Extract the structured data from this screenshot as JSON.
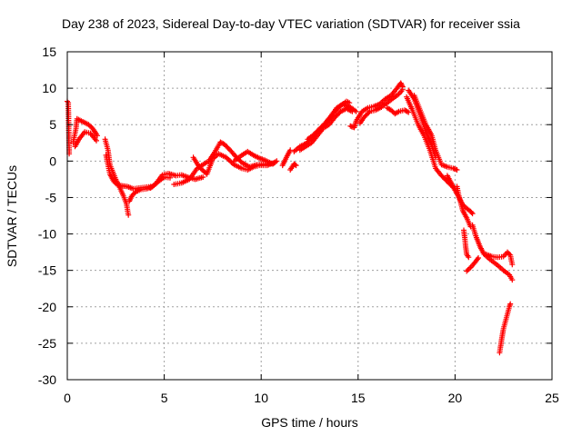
{
  "chart_data": {
    "type": "scatter",
    "title": "Day 238 of 2023, Sidereal Day-to-day VTEC variation (SDTVAR) for receiver ssia",
    "xlabel": "GPS time / hours",
    "ylabel": "SDTVAR / TECUs",
    "xlim": [
      0,
      25
    ],
    "ylim": [
      -30,
      15
    ],
    "xticks": [
      0,
      5,
      10,
      15,
      20,
      25
    ],
    "yticks": [
      -30,
      -25,
      -20,
      -15,
      -10,
      -5,
      0,
      5,
      10,
      15
    ],
    "grid": true,
    "marker": "+",
    "color": "#ff0000",
    "series": [
      {
        "name": "SDTVAR",
        "segments": [
          [
            [
              0.0,
              8.2
            ],
            [
              0.05,
              8.0
            ],
            [
              0.1,
              1.0
            ]
          ],
          [
            [
              0.3,
              2.5
            ],
            [
              0.45,
              4.5
            ],
            [
              0.5,
              5.8
            ],
            [
              0.8,
              5.4
            ],
            [
              1.1,
              5.0
            ],
            [
              1.3,
              4.5
            ],
            [
              1.55,
              3.5
            ]
          ],
          [
            [
              0.4,
              2.0
            ],
            [
              0.6,
              3.0
            ],
            [
              0.9,
              4.0
            ],
            [
              1.2,
              3.8
            ],
            [
              1.5,
              2.8
            ]
          ],
          [
            [
              1.95,
              3.0
            ],
            [
              2.1,
              1.5
            ],
            [
              2.2,
              -0.5
            ],
            [
              2.35,
              -1.5
            ],
            [
              2.5,
              -2.5
            ],
            [
              2.7,
              -3.6
            ],
            [
              2.9,
              -4.8
            ],
            [
              3.05,
              -5.8
            ],
            [
              3.15,
              -7.4
            ]
          ],
          [
            [
              2.0,
              0.8
            ],
            [
              2.2,
              -1.8
            ],
            [
              2.4,
              -2.8
            ],
            [
              2.6,
              -3.3
            ],
            [
              2.85,
              -3.4
            ],
            [
              3.1,
              -3.5
            ],
            [
              3.4,
              -3.8
            ],
            [
              3.7,
              -3.7
            ],
            [
              4.0,
              -3.6
            ],
            [
              4.3,
              -3.5
            ]
          ],
          [
            [
              3.2,
              -5.5
            ],
            [
              3.35,
              -4.7
            ],
            [
              3.55,
              -4.2
            ],
            [
              3.8,
              -3.9
            ],
            [
              4.1,
              -3.8
            ],
            [
              4.4,
              -3.5
            ],
            [
              4.7,
              -2.8
            ],
            [
              5.0,
              -2.2
            ],
            [
              5.3,
              -2.3
            ]
          ],
          [
            [
              4.3,
              -3.7
            ],
            [
              4.6,
              -3.0
            ],
            [
              4.9,
              -1.9
            ],
            [
              5.2,
              -1.7
            ],
            [
              5.6,
              -2.0
            ],
            [
              5.9,
              -1.9
            ],
            [
              6.2,
              -2.2
            ],
            [
              6.6,
              -2.5
            ],
            [
              7.0,
              -2.2
            ]
          ],
          [
            [
              5.5,
              -3.2
            ],
            [
              5.9,
              -3.0
            ],
            [
              6.3,
              -2.5
            ],
            [
              6.7,
              -1.0
            ],
            [
              7.0,
              -0.5
            ],
            [
              7.3,
              0.0
            ],
            [
              7.6,
              1.2
            ],
            [
              7.9,
              2.6
            ],
            [
              8.1,
              2.3
            ],
            [
              8.4,
              1.5
            ],
            [
              8.7,
              0.6
            ],
            [
              9.0,
              -0.2
            ],
            [
              9.4,
              -0.8
            ],
            [
              9.8,
              -0.5
            ],
            [
              10.2,
              -0.4
            ],
            [
              10.6,
              -0.3
            ]
          ],
          [
            [
              6.5,
              0.5
            ],
            [
              6.8,
              -0.8
            ],
            [
              7.2,
              -1.8
            ],
            [
              7.5,
              0.3
            ],
            [
              7.8,
              1.0
            ],
            [
              8.2,
              0.5
            ],
            [
              8.6,
              -0.5
            ],
            [
              9.0,
              -1.0
            ],
            [
              9.3,
              -1.2
            ],
            [
              9.6,
              -0.8
            ],
            [
              9.9,
              -0.6
            ],
            [
              10.3,
              -0.6
            ],
            [
              10.7,
              -0.2
            ]
          ],
          [
            [
              8.6,
              0.0
            ],
            [
              9.0,
              0.8
            ],
            [
              9.3,
              1.3
            ],
            [
              9.6,
              0.8
            ],
            [
              9.9,
              0.4
            ],
            [
              10.2,
              0.1
            ],
            [
              10.6,
              -0.4
            ],
            [
              10.8,
              0.0
            ]
          ],
          [
            [
              11.1,
              -0.6
            ],
            [
              11.3,
              0.5
            ],
            [
              11.5,
              1.5
            ]
          ],
          [
            [
              11.5,
              -1.2
            ],
            [
              11.7,
              -0.4
            ],
            [
              11.8,
              -0.6
            ]
          ],
          [
            [
              11.7,
              1.3
            ],
            [
              12.0,
              2.0
            ],
            [
              12.3,
              2.4
            ],
            [
              12.6,
              3.0
            ],
            [
              12.9,
              3.9
            ],
            [
              13.2,
              4.8
            ],
            [
              13.5,
              5.7
            ],
            [
              13.8,
              6.8
            ],
            [
              14.1,
              7.6
            ],
            [
              14.4,
              8.2
            ],
            [
              14.55,
              8.0
            ]
          ],
          [
            [
              12.0,
              1.5
            ],
            [
              12.3,
              2.0
            ],
            [
              12.6,
              2.5
            ],
            [
              12.9,
              3.5
            ],
            [
              13.2,
              4.5
            ],
            [
              13.5,
              5.0
            ],
            [
              13.8,
              6.0
            ],
            [
              14.1,
              6.8
            ],
            [
              14.4,
              7.2
            ],
            [
              14.7,
              6.8
            ]
          ],
          [
            [
              12.4,
              3.0
            ],
            [
              12.7,
              3.6
            ],
            [
              13.0,
              4.4
            ],
            [
              13.3,
              5.2
            ],
            [
              13.6,
              6.2
            ],
            [
              13.9,
              7.3
            ],
            [
              14.2,
              7.8
            ],
            [
              14.6,
              7.4
            ],
            [
              14.9,
              6.8
            ]
          ],
          [
            [
              14.6,
              4.8
            ],
            [
              14.8,
              4.6
            ],
            [
              14.9,
              5.5
            ],
            [
              15.2,
              6.8
            ],
            [
              15.5,
              7.3
            ],
            [
              15.8,
              7.5
            ],
            [
              16.1,
              7.8
            ],
            [
              16.4,
              8.5
            ],
            [
              16.7,
              9.0
            ],
            [
              16.95,
              9.8
            ],
            [
              17.2,
              10.7
            ],
            [
              17.3,
              10.2
            ]
          ],
          [
            [
              15.1,
              5.2
            ],
            [
              15.3,
              6.0
            ],
            [
              15.6,
              6.8
            ],
            [
              15.9,
              7.0
            ],
            [
              16.2,
              7.4
            ],
            [
              16.5,
              8.0
            ],
            [
              16.8,
              8.6
            ],
            [
              17.1,
              9.2
            ],
            [
              17.3,
              9.8
            ]
          ],
          [
            [
              16.5,
              7.3
            ],
            [
              16.7,
              7.0
            ],
            [
              16.9,
              6.5
            ],
            [
              17.1,
              6.8
            ],
            [
              17.4,
              7.0
            ],
            [
              17.6,
              6.7
            ]
          ],
          [
            [
              17.5,
              8.8
            ],
            [
              17.8,
              7.0
            ],
            [
              18.1,
              5.0
            ],
            [
              18.4,
              3.5
            ],
            [
              18.7,
              1.5
            ],
            [
              19.0,
              -1.0
            ],
            [
              19.3,
              -2.0
            ],
            [
              19.6,
              -2.8
            ],
            [
              19.9,
              -3.6
            ]
          ],
          [
            [
              17.9,
              9.0
            ],
            [
              18.2,
              7.0
            ],
            [
              18.5,
              5.0
            ],
            [
              18.8,
              3.5
            ],
            [
              19.0,
              1.5
            ],
            [
              19.3,
              -0.5
            ],
            [
              19.6,
              -0.8
            ],
            [
              19.9,
              -1.0
            ],
            [
              20.1,
              -1.2
            ]
          ],
          [
            [
              17.6,
              9.7
            ],
            [
              17.9,
              8.5
            ],
            [
              18.2,
              6.3
            ],
            [
              18.5,
              4.0
            ],
            [
              18.8,
              2.2
            ],
            [
              19.0,
              0.5
            ]
          ],
          [
            [
              19.6,
              -2.0
            ],
            [
              19.8,
              -3.0
            ],
            [
              20.0,
              -4.0
            ],
            [
              20.2,
              -5.0
            ],
            [
              20.4,
              -6.0
            ],
            [
              20.6,
              -6.5
            ],
            [
              20.8,
              -6.9
            ],
            [
              20.9,
              -7.2
            ]
          ],
          [
            [
              20.1,
              -3.5
            ],
            [
              20.2,
              -4.8
            ],
            [
              20.4,
              -6.8
            ],
            [
              20.6,
              -7.8
            ],
            [
              20.8,
              -9.0
            ]
          ],
          [
            [
              20.45,
              -9.5
            ],
            [
              20.5,
              -10.5
            ],
            [
              20.55,
              -11.8
            ],
            [
              20.6,
              -12.8
            ],
            [
              20.7,
              -13.2
            ]
          ],
          [
            [
              20.6,
              -15.1
            ],
            [
              20.8,
              -14.6
            ],
            [
              21.0,
              -14.0
            ],
            [
              21.2,
              -13.3
            ]
          ],
          [
            [
              20.9,
              -8.8
            ],
            [
              21.1,
              -10.5
            ],
            [
              21.3,
              -11.8
            ],
            [
              21.5,
              -12.8
            ],
            [
              21.8,
              -13.5
            ],
            [
              22.2,
              -14.3
            ],
            [
              22.5,
              -15.0
            ],
            [
              22.8,
              -15.6
            ],
            [
              22.95,
              -16.3
            ]
          ],
          [
            [
              21.6,
              -12.8
            ],
            [
              21.9,
              -13.1
            ],
            [
              22.2,
              -13.2
            ],
            [
              22.5,
              -13.1
            ],
            [
              22.7,
              -12.5
            ],
            [
              22.85,
              -12.9
            ],
            [
              22.95,
              -14.2
            ]
          ],
          [
            [
              22.3,
              -26.3
            ],
            [
              22.4,
              -24.5
            ],
            [
              22.5,
              -23.0
            ],
            [
              22.6,
              -22.0
            ],
            [
              22.7,
              -21.0
            ],
            [
              22.8,
              -20.0
            ],
            [
              22.85,
              -19.6
            ]
          ]
        ]
      }
    ]
  }
}
